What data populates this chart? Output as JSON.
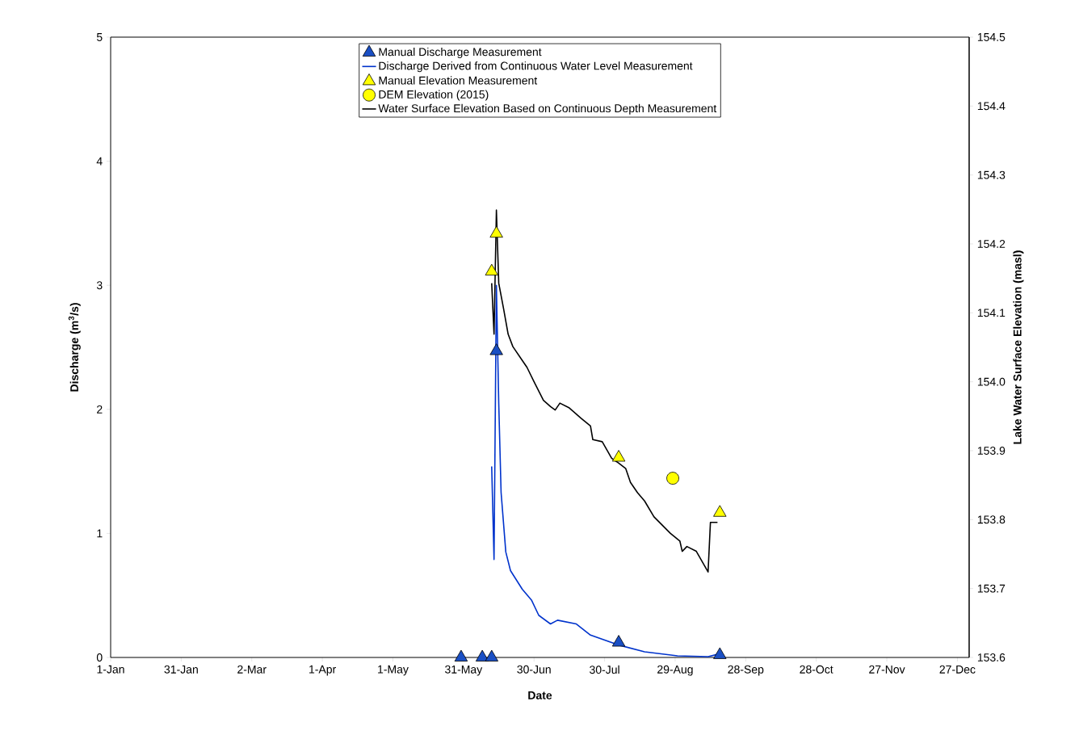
{
  "chart_data": {
    "type": "line",
    "xlabel": "Date",
    "ylabel": "Discharge (m$^{3}$/s)",
    "y2label": "Lake Water Surface Elevation (masl)",
    "xlim": [
      "2015-01-01",
      "2016-01-01"
    ],
    "xticks": [
      {
        "value": "2015-01-01",
        "label": "1-Jan"
      },
      {
        "value": "2015-01-31",
        "label": "31-Jan"
      },
      {
        "value": "2015-03-02",
        "label": "2-Mar"
      },
      {
        "value": "2015-04-01",
        "label": "1-Apr"
      },
      {
        "value": "2015-05-01",
        "label": "1-May"
      },
      {
        "value": "2015-05-31",
        "label": "31-May"
      },
      {
        "value": "2015-06-30",
        "label": "30-Jun"
      },
      {
        "value": "2015-07-30",
        "label": "30-Jul"
      },
      {
        "value": "2015-08-29",
        "label": "29-Aug"
      },
      {
        "value": "2015-09-28",
        "label": "28-Sep"
      },
      {
        "value": "2015-10-28",
        "label": "28-Oct"
      },
      {
        "value": "2015-11-27",
        "label": "27-Nov"
      },
      {
        "value": "2015-12-27",
        "label": "27-Dec"
      }
    ],
    "ylim": [
      0,
      5
    ],
    "yticks": [
      0,
      1,
      2,
      3,
      4,
      5
    ],
    "y2lim": [
      153.6,
      154.5
    ],
    "y2ticks": [
      153.6,
      153.7,
      153.8,
      153.9,
      {
        "value": 154,
        "label": "154.0"
      },
      154.1,
      154.2,
      154.3,
      154.4,
      154.5
    ],
    "legend": "top",
    "grid": false,
    "series": [
      {
        "name": "Manual Discharge Measurement",
        "type": "scatter",
        "marker": "triangle",
        "color": "#1a4fc4",
        "x": [
          "2015-05-30",
          "2015-06-08",
          "2015-06-12",
          "2015-06-14",
          "2015-08-05",
          "2015-09-17"
        ],
        "values": [
          0,
          0,
          0,
          2.47,
          0.12,
          0.02
        ]
      },
      {
        "name": "Discharge Derived from Continuous Water Level Measurement",
        "marker": "none",
        "color": "#0033cc",
        "x": [
          "2015-06-12",
          "2015-06-13",
          "2015-06-14",
          "2015-06-15",
          "2015-06-16",
          "2015-06-18",
          "2015-06-20",
          "2015-06-25",
          "2015-06-29",
          "2015-07-02",
          "2015-07-07",
          "2015-07-10",
          "2015-07-18",
          "2015-07-24",
          "2015-08-05",
          "2015-08-16",
          "2015-08-30",
          "2015-09-12",
          "2015-09-17"
        ],
        "values": [
          1.54,
          0.79,
          3.0,
          2.05,
          1.33,
          0.85,
          0.7,
          0.55,
          0.46,
          0.34,
          0.27,
          0.3,
          0.27,
          0.18,
          0.1,
          0.045,
          0.013,
          0.006,
          0.03
        ]
      },
      {
        "name": "Manual Elevation Measurement",
        "type": "scatter",
        "marker": "triangle",
        "axis": "y2",
        "color": "#ffff00",
        "x": [
          "2015-06-12",
          "2015-06-14",
          "2015-08-05",
          "2015-09-17"
        ],
        "values": [
          154.16,
          154.215,
          153.89,
          153.81
        ]
      },
      {
        "name": "DEM Elevation (2015)",
        "type": "scatter",
        "marker": "circle",
        "axis": "y2",
        "color": "#ffff00",
        "x": [
          "2015-08-28"
        ],
        "values": [
          153.86
        ]
      },
      {
        "name": "Water Surface Elevation Based on Continuous Depth Measurement",
        "marker": "none",
        "axis": "y2",
        "color": "#000000",
        "x": [
          "2015-06-12",
          "2015-06-13",
          "2015-06-14",
          "2015-06-15",
          "2015-06-17",
          "2015-06-19",
          "2015-06-21",
          "2015-06-25",
          "2015-06-27",
          "2015-06-30",
          "2015-07-04",
          "2015-07-07",
          "2015-07-09",
          "2015-07-11",
          "2015-07-15",
          "2015-07-20",
          "2015-07-24",
          "2015-07-25",
          "2015-07-29",
          "2015-08-02",
          "2015-08-05",
          "2015-08-08",
          "2015-08-10",
          "2015-08-13",
          "2015-08-16",
          "2015-08-20",
          "2015-08-27",
          "2015-08-31",
          "2015-09-01",
          "2015-09-03",
          "2015-09-07",
          "2015-09-12",
          "2015-09-13",
          "2015-09-16"
        ],
        "values": [
          154.143,
          154.069,
          154.249,
          154.143,
          154.107,
          154.069,
          154.051,
          154.031,
          154.021,
          154.0,
          153.973,
          153.964,
          153.959,
          153.969,
          153.962,
          153.947,
          153.936,
          153.916,
          153.913,
          153.889,
          153.882,
          153.874,
          153.854,
          153.839,
          153.827,
          153.804,
          153.78,
          153.769,
          153.754,
          153.761,
          153.754,
          153.724,
          153.796,
          153.796
        ]
      }
    ]
  }
}
